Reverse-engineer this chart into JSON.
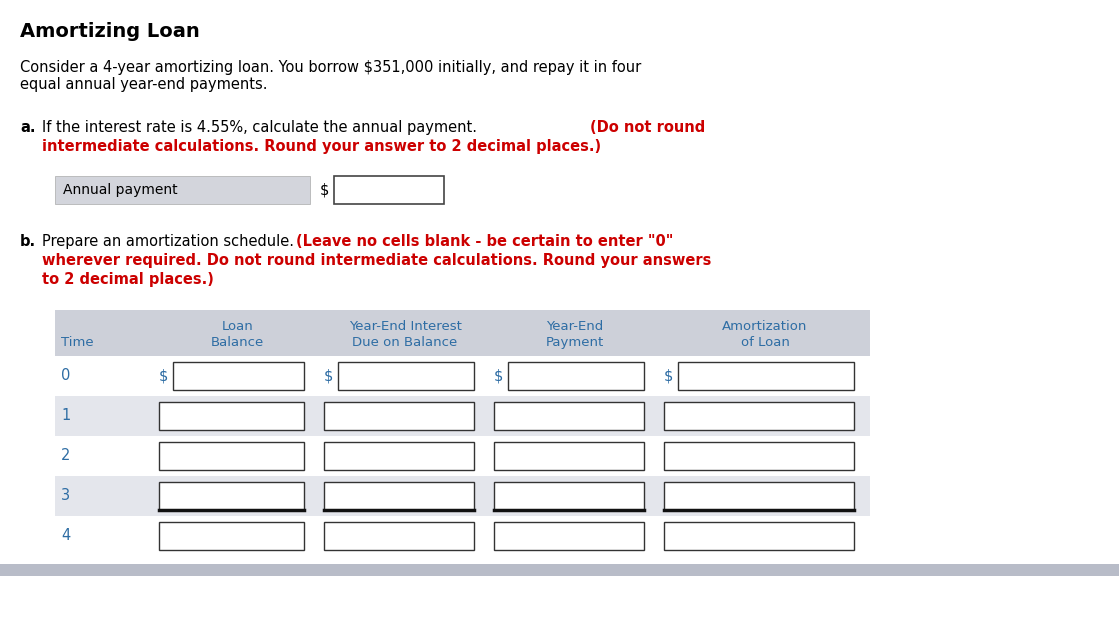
{
  "title": "Amortizing Loan",
  "title_color": "#000000",
  "title_fontsize": 14,
  "body_text_color": "#000000",
  "blue_text_color": "#2e6da4",
  "red_text_color": "#cc0000",
  "annual_payment_label": "Annual payment",
  "table_header_bg": "#cdd0d9",
  "table_row_bg_light": "#ffffff",
  "table_row_bg_alt": "#e4e6ec",
  "col_headers_line1": [
    "",
    "Loan",
    "Year-End Interest",
    "Year-End",
    "Amortization"
  ],
  "col_headers_line2": [
    "Time",
    "Balance",
    "Due on Balance",
    "Payment",
    "of Loan"
  ],
  "time_values": [
    0,
    1,
    2,
    3,
    4
  ],
  "background_color": "#ffffff",
  "bottom_bar_color": "#b8bcc8",
  "fig_w": 11.19,
  "fig_h": 6.43,
  "dpi": 100
}
